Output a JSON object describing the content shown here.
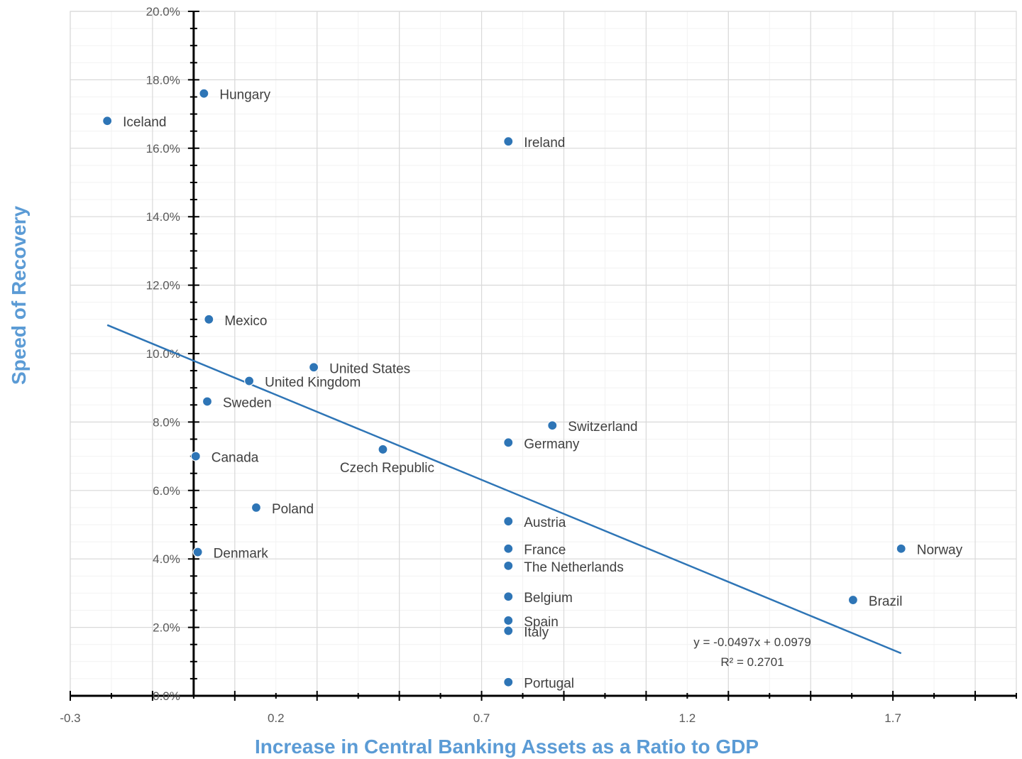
{
  "chart_data": {
    "type": "scatter",
    "xlabel": "Increase in Central Banking Assets as a Ratio to GDP",
    "ylabel": "Speed of Recovery",
    "xlim": [
      -0.3,
      2.0
    ],
    "ylim": [
      0.0,
      0.2
    ],
    "x_ticks": [
      -0.3,
      0.2,
      0.7,
      1.2,
      1.7
    ],
    "x_tick_labels": [
      "-0.3",
      "0.2",
      "0.7",
      "1.2",
      "1.7"
    ],
    "y_ticks": [
      0.0,
      0.02,
      0.04,
      0.06,
      0.08,
      0.1,
      0.12,
      0.14,
      0.16,
      0.18,
      0.2
    ],
    "y_tick_labels": [
      "0.0%",
      "2.0%",
      "4.0%",
      "6.0%",
      "8.0%",
      "10.0%",
      "12.0%",
      "14.0%",
      "16.0%",
      "18.0%",
      "20.0%"
    ],
    "grid": true,
    "marker_color": "#2e75b6",
    "points": [
      {
        "label": "Hungary",
        "x": 0.025,
        "y": 0.176
      },
      {
        "label": "Iceland",
        "x": -0.21,
        "y": 0.168
      },
      {
        "label": "Ireland",
        "x": 0.765,
        "y": 0.162
      },
      {
        "label": "Mexico",
        "x": 0.037,
        "y": 0.11
      },
      {
        "label": "United States",
        "x": 0.292,
        "y": 0.096
      },
      {
        "label": "United Kingdom",
        "x": 0.135,
        "y": 0.092
      },
      {
        "label": "Sweden",
        "x": 0.033,
        "y": 0.086
      },
      {
        "label": "Switzerland",
        "x": 0.872,
        "y": 0.079
      },
      {
        "label": "Germany",
        "x": 0.765,
        "y": 0.074
      },
      {
        "label": "Czech Republic",
        "x": 0.46,
        "y": 0.072
      },
      {
        "label": "Canada",
        "x": 0.005,
        "y": 0.07
      },
      {
        "label": "Poland",
        "x": 0.152,
        "y": 0.055
      },
      {
        "label": "Austria",
        "x": 0.765,
        "y": 0.051
      },
      {
        "label": "France",
        "x": 0.765,
        "y": 0.043
      },
      {
        "label": "Norway",
        "x": 1.72,
        "y": 0.043
      },
      {
        "label": "Denmark",
        "x": 0.01,
        "y": 0.042
      },
      {
        "label": "The Netherlands",
        "x": 0.765,
        "y": 0.038
      },
      {
        "label": "Belgium",
        "x": 0.765,
        "y": 0.029
      },
      {
        "label": "Brazil",
        "x": 1.603,
        "y": 0.028
      },
      {
        "label": "Spain",
        "x": 0.765,
        "y": 0.022
      },
      {
        "label": "Italy",
        "x": 0.765,
        "y": 0.019
      },
      {
        "label": "Portugal",
        "x": 0.765,
        "y": 0.004
      }
    ],
    "trendline": {
      "type": "linear",
      "slope": -0.0497,
      "intercept": 0.0979,
      "x_range": [
        -0.21,
        1.72
      ],
      "color": "#2e75b6",
      "equation": "y = -0.0497x + 0.0979",
      "r_squared": "R² = 0.2701"
    }
  }
}
